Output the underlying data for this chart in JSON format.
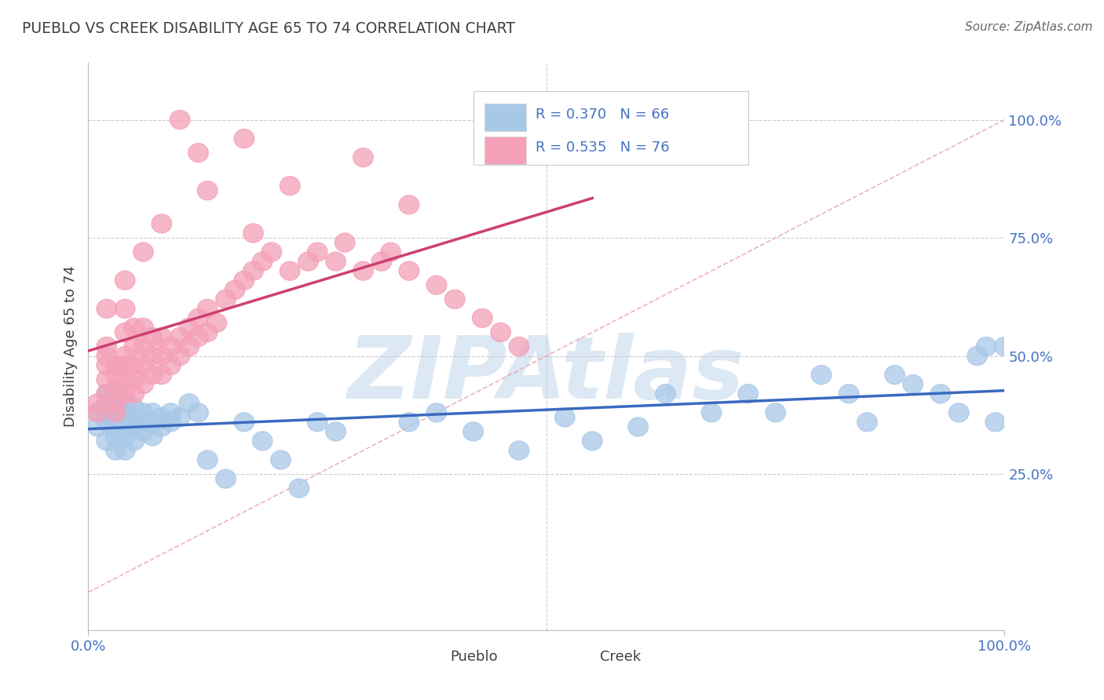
{
  "title": "PUEBLO VS CREEK DISABILITY AGE 65 TO 74 CORRELATION CHART",
  "source": "Source: ZipAtlas.com",
  "ylabel": "Disability Age 65 to 74",
  "pueblo_R": 0.37,
  "pueblo_N": 66,
  "creek_R": 0.535,
  "creek_N": 76,
  "pueblo_color": "#a8c8e8",
  "creek_color": "#f4a0b8",
  "pueblo_line_color": "#3a6abf",
  "creek_line_color": "#cc4070",
  "diag_line_color": "#e8a0b0",
  "grid_color": "#cccccc",
  "bg_color": "#ffffff",
  "watermark_color": "#dce8f4",
  "tick_color": "#4472c4",
  "title_color": "#404040",
  "source_color": "#666666",
  "ylabel_color": "#404040",
  "legend_border_color": "#cccccc",
  "bottom_legend_color": "#404040",
  "xlim": [
    0.0,
    1.0
  ],
  "ylim": [
    -0.08,
    1.12
  ],
  "ytick_positions": [
    0.25,
    0.5,
    0.75,
    1.0
  ],
  "ytick_labels": [
    "25.0%",
    "50.0%",
    "75.0%",
    "100.0%"
  ],
  "xtick_positions": [
    0.0,
    1.0
  ],
  "xtick_labels": [
    "0.0%",
    "100.0%"
  ],
  "pueblo_x": [
    0.01,
    0.01,
    0.02,
    0.02,
    0.02,
    0.02,
    0.02,
    0.03,
    0.03,
    0.03,
    0.03,
    0.03,
    0.03,
    0.03,
    0.04,
    0.04,
    0.04,
    0.04,
    0.04,
    0.05,
    0.05,
    0.05,
    0.05,
    0.06,
    0.06,
    0.06,
    0.07,
    0.07,
    0.07,
    0.08,
    0.08,
    0.09,
    0.09,
    0.1,
    0.11,
    0.12,
    0.13,
    0.15,
    0.17,
    0.19,
    0.21,
    0.23,
    0.25,
    0.27,
    0.35,
    0.38,
    0.42,
    0.47,
    0.52,
    0.55,
    0.6,
    0.63,
    0.68,
    0.72,
    0.75,
    0.8,
    0.83,
    0.85,
    0.88,
    0.9,
    0.93,
    0.95,
    0.97,
    0.98,
    0.99,
    1.0
  ],
  "pueblo_y": [
    0.35,
    0.38,
    0.32,
    0.36,
    0.38,
    0.4,
    0.42,
    0.3,
    0.33,
    0.35,
    0.37,
    0.39,
    0.4,
    0.42,
    0.3,
    0.33,
    0.36,
    0.38,
    0.4,
    0.32,
    0.35,
    0.37,
    0.39,
    0.34,
    0.36,
    0.38,
    0.33,
    0.36,
    0.38,
    0.35,
    0.37,
    0.36,
    0.38,
    0.37,
    0.4,
    0.38,
    0.28,
    0.24,
    0.36,
    0.32,
    0.28,
    0.22,
    0.36,
    0.34,
    0.36,
    0.38,
    0.34,
    0.3,
    0.37,
    0.32,
    0.35,
    0.42,
    0.38,
    0.42,
    0.38,
    0.46,
    0.42,
    0.36,
    0.46,
    0.44,
    0.42,
    0.38,
    0.5,
    0.52,
    0.36,
    0.52
  ],
  "creek_x": [
    0.01,
    0.01,
    0.02,
    0.02,
    0.02,
    0.02,
    0.02,
    0.03,
    0.03,
    0.03,
    0.03,
    0.03,
    0.04,
    0.04,
    0.04,
    0.04,
    0.04,
    0.04,
    0.05,
    0.05,
    0.05,
    0.05,
    0.05,
    0.06,
    0.06,
    0.06,
    0.06,
    0.07,
    0.07,
    0.07,
    0.08,
    0.08,
    0.08,
    0.09,
    0.09,
    0.1,
    0.1,
    0.11,
    0.11,
    0.12,
    0.12,
    0.13,
    0.13,
    0.14,
    0.15,
    0.16,
    0.17,
    0.18,
    0.19,
    0.2,
    0.22,
    0.24,
    0.25,
    0.27,
    0.28,
    0.3,
    0.32,
    0.33,
    0.35,
    0.38,
    0.4,
    0.43,
    0.45,
    0.47,
    0.3,
    0.35,
    0.17,
    0.22,
    0.1,
    0.12,
    0.18,
    0.13,
    0.08,
    0.06,
    0.04,
    0.02
  ],
  "creek_y": [
    0.38,
    0.4,
    0.42,
    0.45,
    0.48,
    0.5,
    0.52,
    0.38,
    0.4,
    0.43,
    0.46,
    0.48,
    0.42,
    0.45,
    0.48,
    0.5,
    0.55,
    0.6,
    0.42,
    0.45,
    0.48,
    0.52,
    0.56,
    0.44,
    0.48,
    0.52,
    0.56,
    0.46,
    0.5,
    0.54,
    0.46,
    0.5,
    0.54,
    0.48,
    0.52,
    0.5,
    0.54,
    0.52,
    0.56,
    0.54,
    0.58,
    0.55,
    0.6,
    0.57,
    0.62,
    0.64,
    0.66,
    0.68,
    0.7,
    0.72,
    0.68,
    0.7,
    0.72,
    0.7,
    0.74,
    0.68,
    0.7,
    0.72,
    0.68,
    0.65,
    0.62,
    0.58,
    0.55,
    0.52,
    0.92,
    0.82,
    0.96,
    0.86,
    1.0,
    0.93,
    0.76,
    0.85,
    0.78,
    0.72,
    0.66,
    0.6
  ]
}
